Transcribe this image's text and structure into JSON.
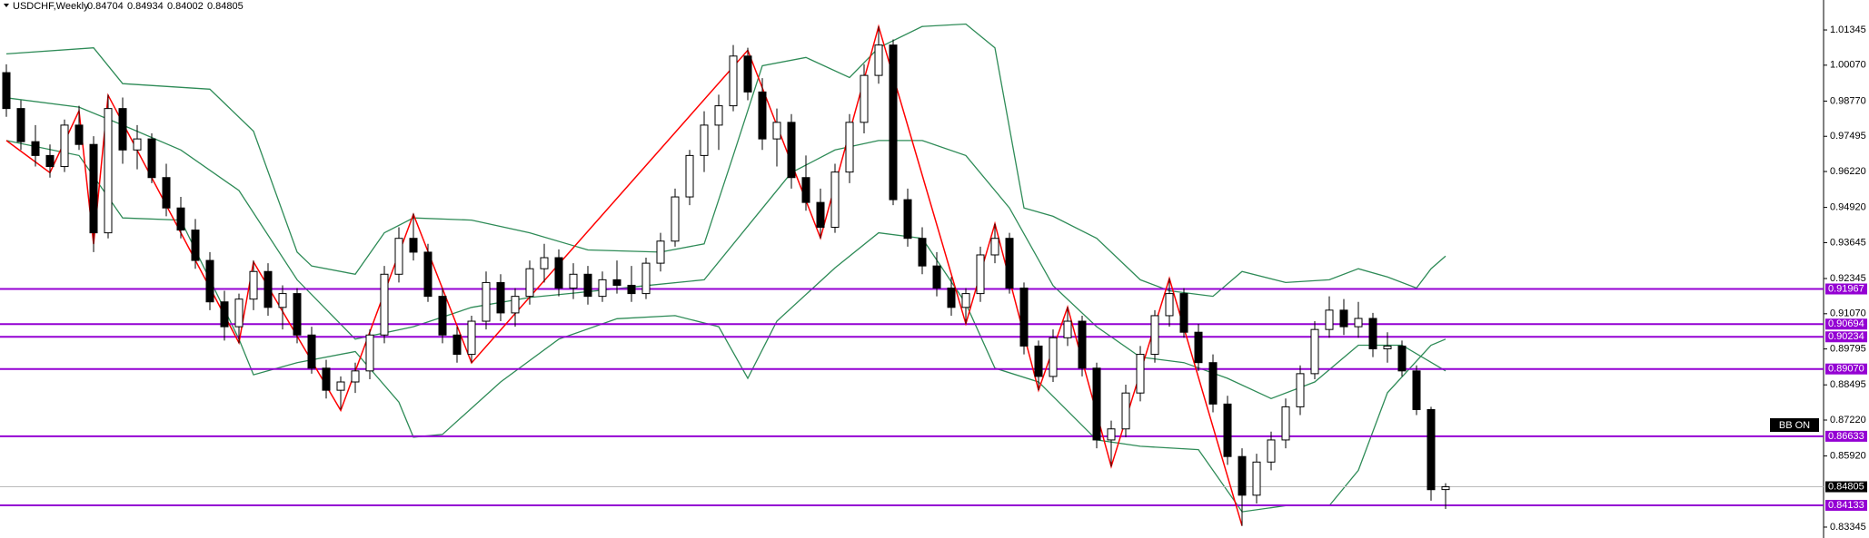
{
  "chart_data": {
    "type": "candlestick",
    "title": "USDCHF,Weekly",
    "candles": {
      "open": [
        0.998,
        0.985,
        0.973,
        0.968,
        0.964,
        0.979,
        0.972,
        0.94,
        0.985,
        0.97,
        0.974,
        0.96,
        0.949,
        0.941,
        0.93,
        0.915,
        0.906,
        0.916,
        0.926,
        0.913,
        0.918,
        0.903,
        0.891,
        0.883,
        0.886,
        0.89,
        0.903,
        0.925,
        0.938,
        0.933,
        0.917,
        0.903,
        0.896,
        0.908,
        0.922,
        0.911,
        0.917,
        0.927,
        0.931,
        0.92,
        0.925,
        0.917,
        0.923,
        0.921,
        0.918,
        0.929,
        0.937,
        0.953,
        0.968,
        0.979,
        0.986,
        1.004,
        0.991,
        0.974,
        0.98,
        0.96,
        0.951,
        0.942,
        0.962,
        0.98,
        0.997,
        1.008,
        0.952,
        0.938,
        0.928,
        0.92,
        0.913,
        0.918,
        0.932,
        0.938,
        0.92,
        0.899,
        0.888,
        0.902,
        0.908,
        0.891,
        0.865,
        0.869,
        0.882,
        0.896,
        0.91,
        0.918,
        0.904,
        0.893,
        0.878,
        0.859,
        0.845,
        0.857,
        0.865,
        0.877,
        0.889,
        0.905,
        0.912,
        0.906,
        0.909,
        0.898,
        0.899,
        0.89,
        0.876,
        0.84704
      ],
      "high": [
        1.001,
        0.988,
        0.979,
        0.972,
        0.981,
        0.986,
        0.975,
        0.99,
        0.989,
        0.979,
        0.976,
        0.965,
        0.953,
        0.945,
        0.933,
        0.919,
        0.918,
        0.93,
        0.929,
        0.921,
        0.92,
        0.906,
        0.894,
        0.888,
        0.893,
        0.905,
        0.928,
        0.942,
        0.947,
        0.936,
        0.92,
        0.906,
        0.91,
        0.926,
        0.925,
        0.92,
        0.93,
        0.936,
        0.934,
        0.929,
        0.928,
        0.926,
        0.93,
        0.928,
        0.931,
        0.94,
        0.956,
        0.97,
        0.984,
        0.99,
        1.008,
        1.007,
        0.996,
        0.985,
        0.983,
        0.968,
        0.956,
        0.965,
        0.983,
        1.001,
        1.0147,
        1.01,
        0.956,
        0.942,
        0.933,
        0.924,
        0.92,
        0.935,
        0.9433,
        0.94,
        0.922,
        0.901,
        0.905,
        0.9131,
        0.91,
        0.893,
        0.872,
        0.885,
        0.899,
        0.912,
        0.9235,
        0.92,
        0.907,
        0.896,
        0.881,
        0.862,
        0.86,
        0.868,
        0.88,
        0.892,
        0.908,
        0.917,
        0.916,
        0.915,
        0.911,
        0.904,
        0.901,
        0.892,
        0.877,
        0.84934
      ],
      "low": [
        0.982,
        0.97,
        0.964,
        0.96,
        0.962,
        0.97,
        0.933,
        0.938,
        0.965,
        0.963,
        0.958,
        0.946,
        0.938,
        0.927,
        0.912,
        0.901,
        0.9,
        0.912,
        0.91,
        0.905,
        0.9,
        0.889,
        0.88,
        0.876,
        0.882,
        0.887,
        0.9,
        0.922,
        0.93,
        0.915,
        0.9,
        0.893,
        0.893,
        0.905,
        0.908,
        0.906,
        0.914,
        0.922,
        0.917,
        0.916,
        0.914,
        0.915,
        0.918,
        0.915,
        0.916,
        0.926,
        0.935,
        0.95,
        0.962,
        0.97,
        0.984,
        0.988,
        0.97,
        0.964,
        0.956,
        0.948,
        0.938,
        0.94,
        0.958,
        0.976,
        0.994,
        0.95,
        0.935,
        0.925,
        0.917,
        0.91,
        0.9071,
        0.915,
        0.929,
        0.918,
        0.896,
        0.883,
        0.886,
        0.899,
        0.888,
        0.862,
        0.8554,
        0.866,
        0.879,
        0.893,
        0.906,
        0.902,
        0.89,
        0.875,
        0.856,
        0.8339,
        0.842,
        0.854,
        0.862,
        0.874,
        0.887,
        0.902,
        0.903,
        0.902,
        0.895,
        0.893,
        0.888,
        0.874,
        0.843,
        0.84002
      ],
      "close": [
        0.985,
        0.973,
        0.968,
        0.964,
        0.979,
        0.972,
        0.94,
        0.985,
        0.97,
        0.974,
        0.96,
        0.949,
        0.941,
        0.93,
        0.915,
        0.906,
        0.916,
        0.926,
        0.913,
        0.918,
        0.903,
        0.891,
        0.883,
        0.886,
        0.89,
        0.903,
        0.925,
        0.938,
        0.933,
        0.917,
        0.903,
        0.896,
        0.908,
        0.922,
        0.911,
        0.917,
        0.927,
        0.931,
        0.92,
        0.925,
        0.917,
        0.923,
        0.921,
        0.918,
        0.929,
        0.937,
        0.953,
        0.968,
        0.979,
        0.986,
        1.004,
        0.991,
        0.974,
        0.98,
        0.96,
        0.951,
        0.942,
        0.962,
        0.98,
        0.997,
        1.008,
        0.952,
        0.938,
        0.928,
        0.92,
        0.913,
        0.918,
        0.932,
        0.938,
        0.92,
        0.899,
        0.888,
        0.902,
        0.908,
        0.891,
        0.865,
        0.869,
        0.882,
        0.896,
        0.91,
        0.918,
        0.904,
        0.893,
        0.878,
        0.859,
        0.845,
        0.857,
        0.865,
        0.877,
        0.889,
        0.905,
        0.912,
        0.906,
        0.909,
        0.898,
        0.899,
        0.89,
        0.876,
        0.847,
        0.84805
      ]
    },
    "up_color": "#ffffff",
    "down_color": "#000000",
    "zigzag": {
      "color": "#ff0000",
      "x": [
        0,
        3,
        5,
        6,
        7,
        16,
        17,
        23,
        28,
        32,
        51,
        56,
        60,
        66,
        68,
        71,
        73,
        76,
        80,
        85
      ],
      "values": [
        0.9734,
        0.9618,
        0.9842,
        0.9359,
        0.9898,
        0.9002,
        0.9295,
        0.8757,
        0.9467,
        0.8929,
        1.0061,
        0.9381,
        1.0147,
        0.9071,
        0.9433,
        0.883,
        0.9131,
        0.8554,
        0.9235,
        0.8339
      ]
    },
    "bands": {
      "color": "#2e8b57",
      "lines": [
        {
          "x": [
            0,
            6,
            8,
            14,
            17,
            20,
            21,
            24,
            26,
            28,
            32,
            36,
            40,
            45,
            48,
            50,
            52,
            55,
            58,
            60,
            63,
            66,
            68,
            70,
            72,
            75,
            78,
            80,
            83,
            85,
            88,
            91,
            93,
            95,
            97,
            98,
            99
          ],
          "values": [
            1.0048,
            1.007,
            0.994,
            0.992,
            0.9768,
            0.933,
            0.928,
            0.925,
            0.94,
            0.9454,
            0.9446,
            0.94,
            0.9338,
            0.933,
            0.936,
            0.968,
            1.0005,
            1.0035,
            0.9962,
            1.007,
            1.0147,
            1.0156,
            1.007,
            0.949,
            0.946,
            0.938,
            0.923,
            0.919,
            0.917,
            0.926,
            0.922,
            0.923,
            0.927,
            0.924,
            0.92,
            0.927,
            0.9316
          ]
        },
        {
          "x": [
            0,
            5,
            8,
            12,
            16,
            20,
            24,
            28,
            32,
            36,
            40,
            44,
            48,
            51,
            54,
            57,
            60,
            63,
            66,
            69,
            72,
            75,
            78,
            81,
            84,
            87,
            90,
            93,
            96,
            99
          ],
          "values": [
            0.9889,
            0.9855,
            0.979,
            0.97,
            0.9553,
            0.923,
            0.9015,
            0.906,
            0.913,
            0.9166,
            0.9187,
            0.9209,
            0.923,
            0.9424,
            0.9618,
            0.97,
            0.9734,
            0.9734,
            0.968,
            0.949,
            0.9209,
            0.906,
            0.895,
            0.893,
            0.8873,
            0.88,
            0.886,
            0.8993,
            0.8993,
            0.89
          ]
        },
        {
          "x": [
            0,
            5,
            8,
            12,
            16,
            17,
            20,
            24,
            27,
            28,
            30,
            34,
            38,
            42,
            46,
            49,
            51,
            53,
            57,
            60,
            63,
            66,
            68,
            71,
            75,
            78,
            82,
            85,
            88,
            91,
            93,
            95,
            98,
            99
          ],
          "values": [
            0.9734,
            0.968,
            0.9454,
            0.9446,
            0.9015,
            0.8886,
            0.893,
            0.897,
            0.8787,
            0.866,
            0.867,
            0.886,
            0.9015,
            0.9089,
            0.91,
            0.906,
            0.8873,
            0.908,
            0.9273,
            0.94,
            0.938,
            0.9144,
            0.891,
            0.886,
            0.865,
            0.8627,
            0.8615,
            0.839,
            0.8412,
            0.8412,
            0.854,
            0.8821,
            0.8993,
            0.9015
          ]
        }
      ]
    },
    "levels": {
      "color": "#9400d3",
      "values": [
        0.91967,
        0.90694,
        0.90234,
        {
          "value": 0.8907,
          "label": "0.89070"
        },
        0.86633,
        0.84133
      ]
    },
    "ylim": [
      0.8295,
      1.0243
    ],
    "yticks": [
      1.01345,
      {
        "value": 1.0007,
        "label": "1.00070"
      },
      {
        "value": 0.9877,
        "label": "0.98770"
      },
      0.97495,
      {
        "value": 0.9622,
        "label": "0.96220"
      },
      {
        "value": 0.9492,
        "label": "0.94920"
      },
      0.93645,
      0.92345,
      {
        "value": 0.9107,
        "label": "0.91070"
      },
      0.89795,
      0.88495,
      {
        "value": 0.8722,
        "label": "0.87220"
      },
      {
        "value": 0.8592,
        "label": "0.85920"
      },
      0.83345
    ],
    "indicator_label": "BB ON"
  }
}
